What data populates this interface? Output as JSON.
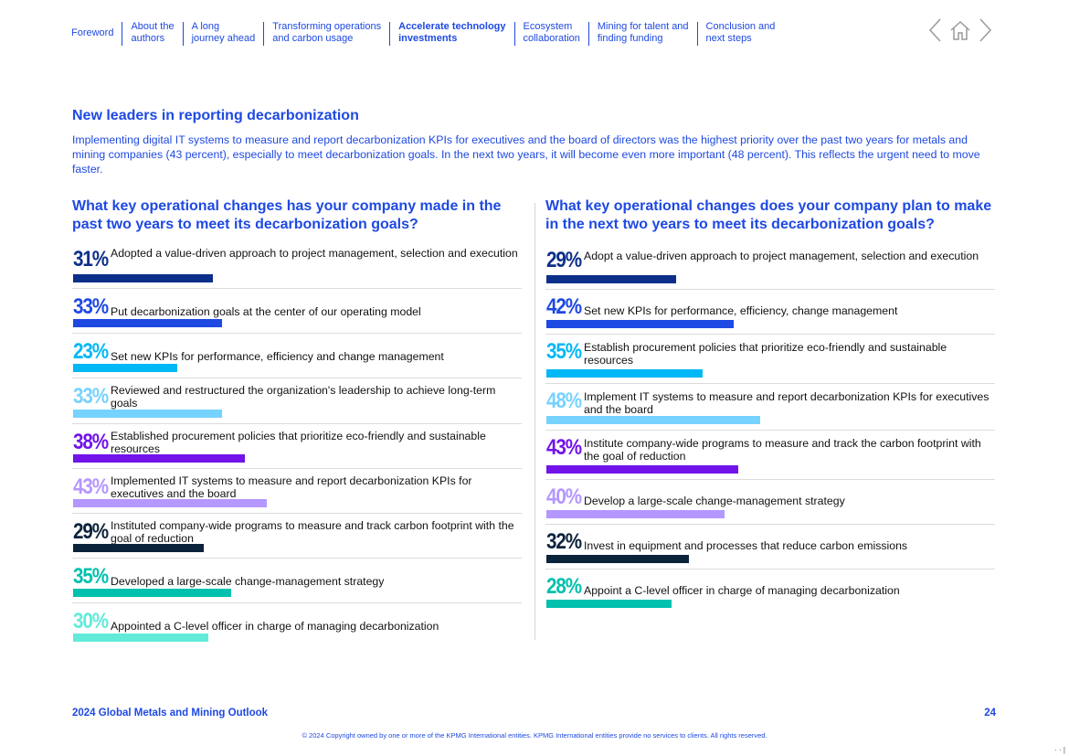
{
  "nav": {
    "items": [
      {
        "label": "Foreword",
        "active": false
      },
      {
        "label": "About the\nauthors",
        "active": false
      },
      {
        "label": "A long\njourney ahead",
        "active": false
      },
      {
        "label": "Transforming operations\nand carbon usage",
        "active": false
      },
      {
        "label": "Accelerate technology\ninvestments",
        "active": true
      },
      {
        "label": "Ecosystem\ncollaboration",
        "active": false
      },
      {
        "label": "Mining for talent and\nfinding funding",
        "active": false
      },
      {
        "label": "Conclusion and\nnext steps",
        "active": false
      }
    ],
    "icons": [
      "chevron-left-icon",
      "home-icon",
      "chevron-right-icon"
    ]
  },
  "section": {
    "title": "New leaders in reporting decarbonization",
    "intro": "Implementing digital IT systems to measure and report decarbonization KPIs for executives and the board of directors was the highest priority over the past two years for metals and mining companies (43 percent), especially to meet decarbonization goals. In the next two years, it will become even more important (48 percent). This reflects the urgent need to move faster."
  },
  "left": {
    "question": "What key operational changes has your company made in the past two years to meet its decarbonization goals?",
    "items": [
      {
        "pct": "31%",
        "value": 31,
        "label": "Adopted a value-driven approach to project management, selection and execution",
        "color": "#0c2f8a"
      },
      {
        "pct": "33%",
        "value": 33,
        "label": "Put decarbonization goals at the center of our operating model",
        "color": "#1e49e2"
      },
      {
        "pct": "23%",
        "value": 23,
        "label": "Set new KPIs for performance, efficiency and change management",
        "color": "#00b8f5"
      },
      {
        "pct": "33%",
        "value": 33,
        "label": "Reviewed and restructured the organization's leadership to achieve long-term goals",
        "color": "#76d2ff"
      },
      {
        "pct": "38%",
        "value": 38,
        "label": "Established procurement policies that prioritize eco-friendly and sustainable resources",
        "color": "#7213ea"
      },
      {
        "pct": "43%",
        "value": 43,
        "label": "Implemented IT systems to measure and report decarbonization KPIs for executives and the board",
        "color": "#b497ff"
      },
      {
        "pct": "29%",
        "value": 29,
        "label": "Instituted company-wide programs to measure and track carbon footprint with the goal of reduction",
        "color": "#0c233c"
      },
      {
        "pct": "35%",
        "value": 35,
        "label": "Developed a large-scale change-management strategy",
        "color": "#00c0ae"
      },
      {
        "pct": "30%",
        "value": 30,
        "label": "Appointed a C-level officer in charge of managing decarbonization",
        "color": "#63ebda"
      }
    ]
  },
  "right": {
    "question": "What key operational changes does your company plan to make in the next two years to meet its decarbonization goals?",
    "items": [
      {
        "pct": "29%",
        "value": 29,
        "label": "Adopt a value-driven approach to project management, selection and execution",
        "color": "#0c2f8a"
      },
      {
        "pct": "42%",
        "value": 42,
        "label": "Set new KPIs for performance, efficiency, change management",
        "color": "#1e49e2"
      },
      {
        "pct": "35%",
        "value": 35,
        "label": "Establish procurement policies that prioritize eco-friendly and sustainable resources",
        "color": "#00b8f5"
      },
      {
        "pct": "48%",
        "value": 48,
        "label": "Implement IT systems to measure and report decarbonization KPIs for executives and the board",
        "color": "#76d2ff"
      },
      {
        "pct": "43%",
        "value": 43,
        "label": "Institute company-wide programs to measure and track the carbon footprint with the goal of reduction",
        "color": "#7213ea"
      },
      {
        "pct": "40%",
        "value": 40,
        "label": "Develop a large-scale change-management strategy",
        "color": "#b497ff"
      },
      {
        "pct": "32%",
        "value": 32,
        "label": "Invest in equipment and processes that reduce carbon emissions",
        "color": "#0c233c"
      },
      {
        "pct": "28%",
        "value": 28,
        "label": "Appoint a C-level officer in charge of managing decarbonization",
        "color": "#00c0ae"
      }
    ]
  },
  "footer": {
    "title": "2024 Global Metals and Mining Outlook",
    "page": "24",
    "copyright": "© 2024 Copyright owned by one or more of the KPMG International entities. KPMG International entities provide no services to clients. All rights reserved.",
    "corner": "· · |"
  }
}
